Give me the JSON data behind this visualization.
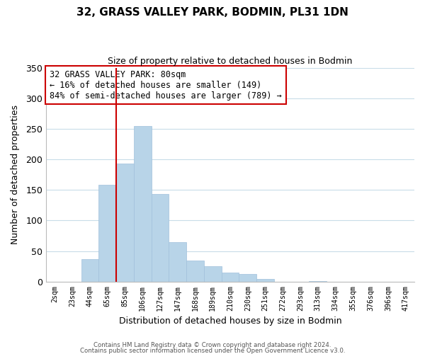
{
  "title": "32, GRASS VALLEY PARK, BODMIN, PL31 1DN",
  "subtitle": "Size of property relative to detached houses in Bodmin",
  "xlabel": "Distribution of detached houses by size in Bodmin",
  "ylabel": "Number of detached properties",
  "bar_labels": [
    "2sqm",
    "23sqm",
    "44sqm",
    "65sqm",
    "85sqm",
    "106sqm",
    "127sqm",
    "147sqm",
    "168sqm",
    "189sqm",
    "210sqm",
    "230sqm",
    "251sqm",
    "272sqm",
    "293sqm",
    "313sqm",
    "334sqm",
    "355sqm",
    "376sqm",
    "396sqm",
    "417sqm"
  ],
  "bar_values": [
    0,
    0,
    37,
    158,
    193,
    255,
    143,
    65,
    34,
    25,
    15,
    13,
    4,
    0,
    0,
    1,
    0,
    0,
    0,
    0,
    0
  ],
  "bar_color": "#b8d4e8",
  "bar_edge_color": "#a0c0dc",
  "highlight_line_index": 4,
  "highlight_line_color": "#cc0000",
  "ylim": [
    0,
    350
  ],
  "yticks": [
    0,
    50,
    100,
    150,
    200,
    250,
    300,
    350
  ],
  "annotation_text": "32 GRASS VALLEY PARK: 80sqm\n← 16% of detached houses are smaller (149)\n84% of semi-detached houses are larger (789) →",
  "annotation_box_color": "#ffffff",
  "annotation_box_edgecolor": "#cc0000",
  "footer_line1": "Contains HM Land Registry data © Crown copyright and database right 2024.",
  "footer_line2": "Contains public sector information licensed under the Open Government Licence v3.0.",
  "background_color": "#ffffff",
  "grid_color": "#c8dce8"
}
